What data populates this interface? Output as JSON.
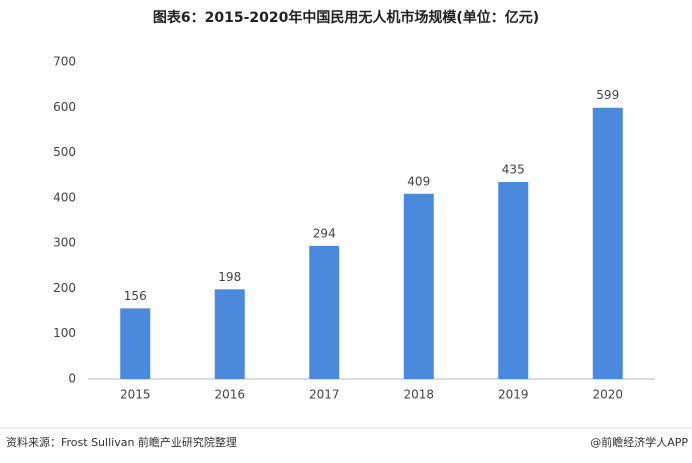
{
  "chart_data": {
    "type": "bar",
    "title": "图表6：2015-2020年中国民用无人机市场规模(单位：亿元)",
    "categories": [
      "2015",
      "2016",
      "2017",
      "2018",
      "2019",
      "2020"
    ],
    "values": [
      156,
      198,
      294,
      409,
      435,
      599
    ],
    "color": "#4a89dc",
    "ylim": [
      0,
      700
    ],
    "yticks": [
      0,
      100,
      200,
      300,
      400,
      500,
      600,
      700
    ],
    "grid": false,
    "source": "资料来源：Frost Sullivan 前瞻产业研究院整理",
    "credit": "@前瞻经济学人APP"
  }
}
